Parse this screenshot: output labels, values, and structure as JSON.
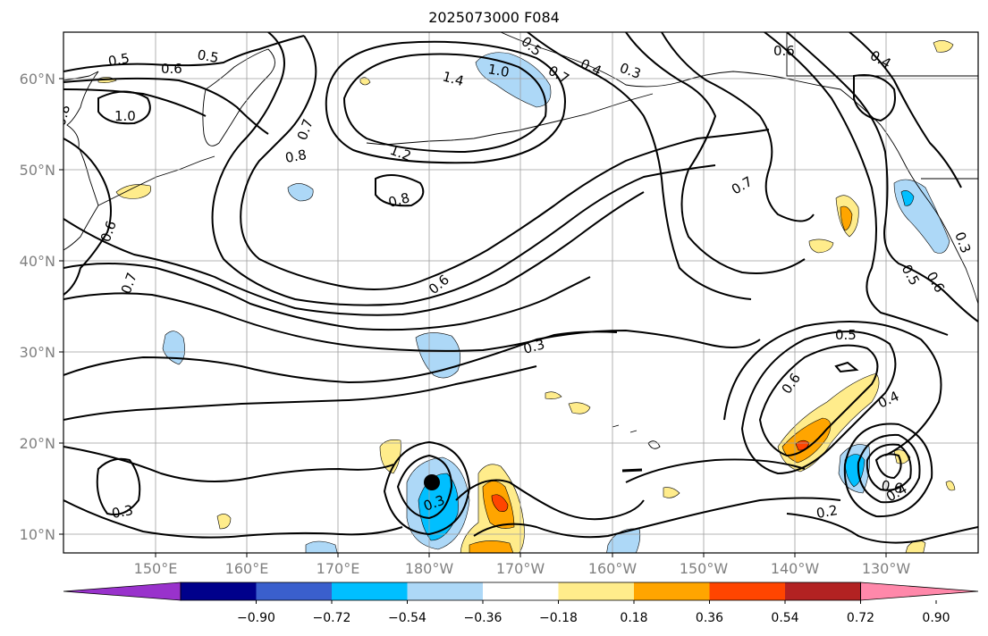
{
  "title": "2025073000 F084",
  "map": {
    "lat_ticks": [
      "60°N",
      "50°N",
      "40°N",
      "30°N",
      "20°N",
      "10°N"
    ],
    "lon_ticks": [
      "150°E",
      "160°E",
      "170°E",
      "180°W",
      "170°W",
      "160°W",
      "150°W",
      "140°W",
      "130°W"
    ],
    "grid": true,
    "contour_color": "#000000",
    "contour_labels": [
      "0.5",
      "0.6",
      "0.5",
      "0.3",
      "0.4",
      "0.5",
      "0.6",
      "0.4",
      "1.0",
      "1.4",
      "1.0",
      "0.7",
      "0.7",
      "0.8",
      "1.2",
      "0.8",
      "0.8",
      "0.7",
      "0.6",
      "0.7",
      "0.6",
      "0.3",
      "0.5",
      "0.6",
      "0.4",
      "0.6",
      "0.4",
      "0.3",
      "0.2",
      "0.5",
      "0.6",
      "0.3",
      "0.3"
    ],
    "storm_marker": "black-dot"
  },
  "colorbar": {
    "tick_labels": [
      "−0.90",
      "−0.72",
      "−0.54",
      "−0.36",
      "−0.18",
      "0.18",
      "0.36",
      "0.54",
      "0.72",
      "0.90"
    ],
    "colors": [
      "#9932cc",
      "#00008b",
      "#3a5fcd",
      "#00bfff",
      "#add8f7",
      "#ffffff",
      "#ffec8b",
      "#ffa500",
      "#ff4500",
      "#b22222",
      "#ff88aa"
    ]
  }
}
